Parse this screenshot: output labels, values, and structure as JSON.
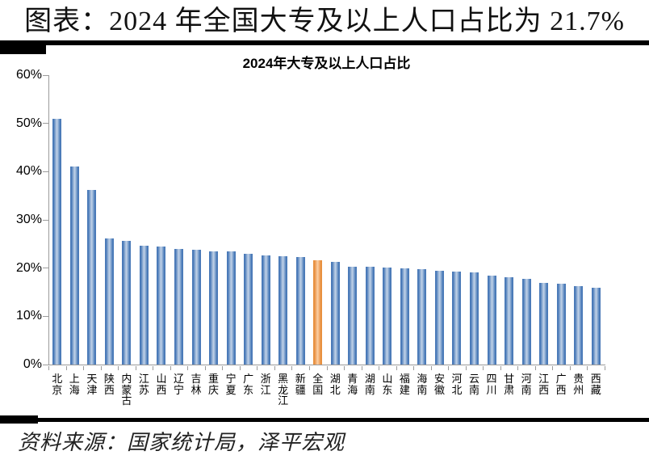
{
  "page": {
    "header_title": "图表：2024 年全国大专及以上人口占比为 21.7%",
    "source_note": "资料来源：国家统计局，泽平宏观"
  },
  "chart_data": {
    "type": "bar",
    "title": "2024年大专及以上人口占比",
    "categories": [
      "北京",
      "上海",
      "天津",
      "陕西",
      "内蒙古",
      "江苏",
      "山西",
      "辽宁",
      "吉林",
      "重庆",
      "宁夏",
      "广东",
      "浙江",
      "黑龙江",
      "新疆",
      "全国",
      "湖北",
      "青海",
      "湖南",
      "山东",
      "福建",
      "海南",
      "安徽",
      "河北",
      "云南",
      "四川",
      "甘肃",
      "河南",
      "江西",
      "广西",
      "贵州",
      "西藏"
    ],
    "values": [
      50.9,
      41.0,
      36.2,
      26.2,
      25.6,
      24.6,
      24.5,
      24.0,
      23.8,
      23.5,
      23.4,
      23.0,
      22.6,
      22.4,
      22.3,
      21.7,
      21.3,
      20.3,
      20.2,
      20.1,
      19.9,
      19.8,
      19.5,
      19.2,
      19.1,
      18.5,
      18.1,
      17.8,
      17.0,
      16.7,
      16.2,
      16.0
    ],
    "unit": "%",
    "highlight_category": "全国",
    "highlight_value": 21.7,
    "xlabel": "",
    "ylabel": "",
    "ylim": [
      0,
      60
    ],
    "y_ticks": [
      "0%",
      "10%",
      "20%",
      "30%",
      "40%",
      "50%",
      "60%"
    ],
    "grid": false,
    "legend": "none",
    "colors": {
      "bar_edge": "#4A7AB8",
      "bar_mid": "#8FAED4",
      "bar_center": "#C2D2E8",
      "highlight_edge": "#E8903E",
      "highlight_mid": "#F3B177",
      "highlight_center": "#FBD1A5",
      "axis": "#9B9B9B"
    }
  }
}
